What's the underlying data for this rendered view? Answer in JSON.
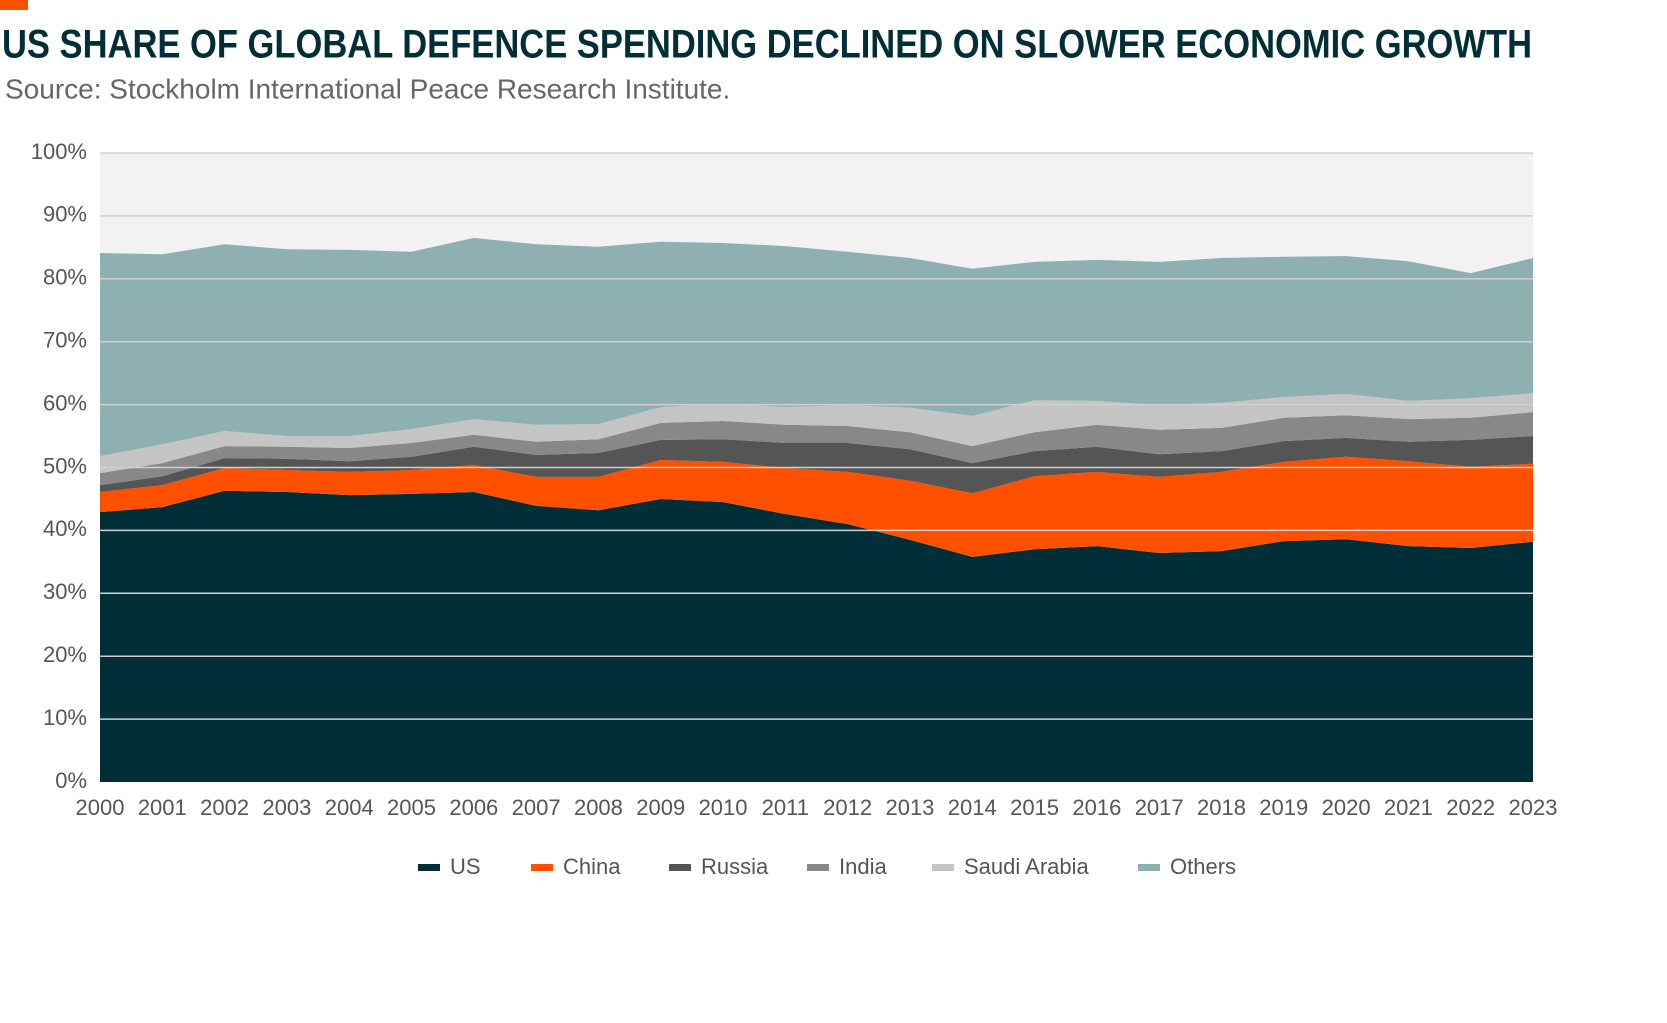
{
  "chart_data": {
    "type": "stacked-area",
    "title": "US SHARE OF GLOBAL DEFENCE SPENDING DECLINED ON SLOWER ECONOMIC GROWTH",
    "subtitle": "Source: Stockholm International Peace Research Institute.",
    "x": [
      2000,
      2001,
      2002,
      2003,
      2004,
      2005,
      2006,
      2007,
      2008,
      2009,
      2010,
      2011,
      2012,
      2013,
      2014,
      2015,
      2016,
      2017,
      2018,
      2019,
      2020,
      2021,
      2022,
      2023
    ],
    "xlim": [
      2000,
      2023
    ],
    "xticks": [
      2000,
      2001,
      2002,
      2003,
      2004,
      2005,
      2006,
      2007,
      2008,
      2009,
      2010,
      2011,
      2012,
      2013,
      2014,
      2015,
      2016,
      2017,
      2018,
      2019,
      2020,
      2021,
      2022,
      2023
    ],
    "ylim": [
      0,
      100
    ],
    "yticks": [
      {
        "value": 0,
        "label": "0%"
      },
      {
        "value": 10,
        "label": "10%"
      },
      {
        "value": 20,
        "label": "20%"
      },
      {
        "value": 30,
        "label": "30%"
      },
      {
        "value": 40,
        "label": "40%"
      },
      {
        "value": 50,
        "label": "50%"
      },
      {
        "value": 60,
        "label": "60%"
      },
      {
        "value": 70,
        "label": "70%"
      },
      {
        "value": 80,
        "label": "80%"
      },
      {
        "value": 90,
        "label": "90%"
      },
      {
        "value": 100,
        "label": "100%"
      }
    ],
    "grid": true,
    "legend": "bottom",
    "series": [
      {
        "name": "US",
        "color": "#022e37",
        "values": [
          42.9,
          43.7,
          46.3,
          46.1,
          45.6,
          45.8,
          46.1,
          43.9,
          43.2,
          45.0,
          44.5,
          42.6,
          41.0,
          38.5,
          35.8,
          37.0,
          37.5,
          36.4,
          36.7,
          38.3,
          38.6,
          37.5,
          37.2,
          38.2
        ]
      },
      {
        "name": "China",
        "color": "#ff5000",
        "values": [
          3.2,
          3.5,
          3.6,
          3.5,
          3.7,
          3.8,
          4.3,
          4.6,
          5.3,
          6.2,
          6.4,
          7.3,
          8.3,
          9.4,
          10.1,
          11.6,
          11.8,
          12.1,
          12.6,
          12.6,
          13.1,
          13.5,
          12.9,
          12.4
        ]
      },
      {
        "name": "Russia",
        "color": "#555555",
        "values": [
          1.1,
          1.4,
          1.6,
          1.8,
          1.7,
          2.1,
          2.9,
          3.5,
          3.8,
          3.2,
          3.6,
          4.0,
          4.6,
          5.0,
          4.8,
          4.0,
          4.0,
          3.6,
          3.3,
          3.3,
          3.0,
          3.1,
          4.3,
          4.4
        ]
      },
      {
        "name": "India",
        "color": "#888888",
        "values": [
          1.9,
          2.1,
          1.9,
          1.9,
          2.1,
          2.2,
          1.9,
          2.1,
          2.2,
          2.7,
          2.9,
          2.9,
          2.7,
          2.7,
          2.7,
          3.0,
          3.5,
          3.9,
          3.7,
          3.7,
          3.6,
          3.6,
          3.5,
          3.8
        ]
      },
      {
        "name": "Saudi Arabia",
        "color": "#c4c4c4",
        "values": [
          2.7,
          3.0,
          2.4,
          1.7,
          1.9,
          2.2,
          2.5,
          2.7,
          2.4,
          2.5,
          2.7,
          2.8,
          3.3,
          3.9,
          4.8,
          5.1,
          3.8,
          3.9,
          4.0,
          3.3,
          3.4,
          2.9,
          3.1,
          3.0
        ]
      },
      {
        "name": "Others",
        "color": "#8fb0b0",
        "values": [
          32.3,
          30.2,
          29.7,
          29.7,
          29.6,
          28.2,
          28.8,
          28.7,
          28.2,
          26.3,
          25.6,
          25.6,
          24.4,
          23.8,
          23.4,
          22.0,
          22.4,
          22.8,
          23.0,
          22.3,
          21.9,
          22.2,
          19.9,
          21.5
        ]
      }
    ]
  }
}
